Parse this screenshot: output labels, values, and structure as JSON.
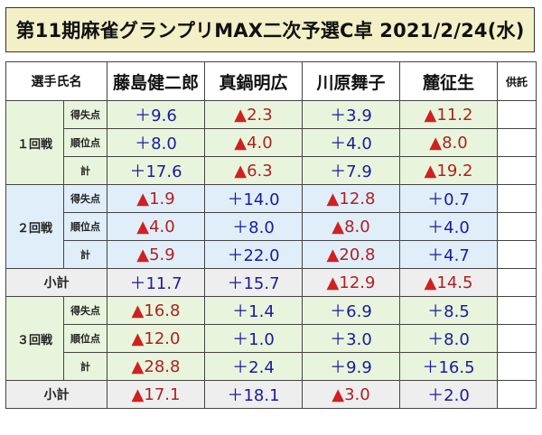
{
  "title": "第11期麻雀グランプリMAX二次予選C卓 2021/2/24(水)",
  "header": {
    "player_label": "選手氏名",
    "players": [
      "藤島健二郎",
      "真鍋明広",
      "川原舞子",
      "麓征生"
    ],
    "supply_label": "供託"
  },
  "rows": {
    "r1": {
      "label": "１回戦",
      "score": {
        "label": "得失点",
        "values": [
          "＋9.6",
          "▲2.3",
          "＋3.9",
          "▲11.2"
        ]
      },
      "rank": {
        "label": "順位点",
        "values": [
          "＋8.0",
          "▲4.0",
          "＋4.0",
          "▲8.0"
        ]
      },
      "total": {
        "label": "計",
        "values": [
          "＋17.6",
          "▲6.3",
          "＋7.9",
          "▲19.2"
        ]
      }
    },
    "r2": {
      "label": "２回戦",
      "score": {
        "label": "得失点",
        "values": [
          "▲1.9",
          "＋14.0",
          "▲12.8",
          "＋0.7"
        ]
      },
      "rank": {
        "label": "順位点",
        "values": [
          "▲4.0",
          "＋8.0",
          "▲8.0",
          "＋4.0"
        ]
      },
      "total": {
        "label": "計",
        "values": [
          "▲5.9",
          "＋22.0",
          "▲20.8",
          "＋4.7"
        ]
      }
    },
    "sub1": {
      "label": "小計",
      "values": [
        "＋11.7",
        "＋15.7",
        "▲12.9",
        "▲14.5"
      ]
    },
    "r3": {
      "label": "３回戦",
      "score": {
        "label": "得失点",
        "values": [
          "▲16.8",
          "＋1.4",
          "＋6.9",
          "＋8.5"
        ]
      },
      "rank": {
        "label": "順位点",
        "values": [
          "▲12.0",
          "＋1.0",
          "＋3.0",
          "＋8.0"
        ]
      },
      "total": {
        "label": "計",
        "values": [
          "▲28.8",
          "＋2.4",
          "＋9.9",
          "＋16.5"
        ]
      }
    },
    "sub2": {
      "label": "小計",
      "values": [
        "▲17.1",
        "＋18.1",
        "▲3.0",
        "＋2.0"
      ]
    }
  },
  "colors": {
    "positive": "#1a1aa0",
    "negative": "#b02020",
    "triangle": "#d02020",
    "round1_bg": "#e8f5dc",
    "round2_bg": "#dfeef9",
    "subtotal_bg": "#eeeeee",
    "title_bg": "#f3efc6"
  }
}
